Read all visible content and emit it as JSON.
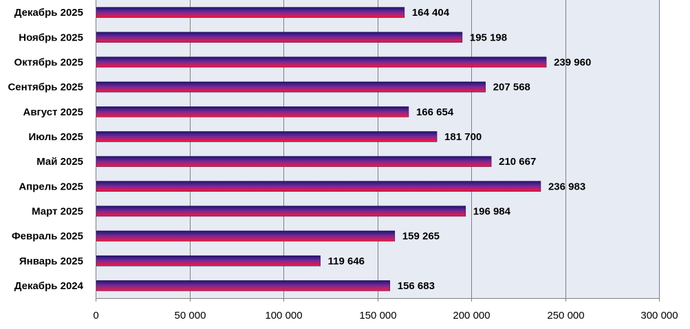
{
  "chart_data": {
    "type": "bar",
    "orientation": "horizontal",
    "title": "",
    "xlabel": "",
    "ylabel": "",
    "categories": [
      "Декабрь 2024",
      "Январь 2025",
      "Февраль 2025",
      "Март 2025",
      "Апрель 2025",
      "Май 2025",
      "Июль 2025",
      "Август 2025",
      "Сентябрь 2025",
      "Октябрь 2025",
      "Ноябрь 2025",
      "Декабрь 2025"
    ],
    "values": [
      156683,
      119646,
      159265,
      196984,
      236983,
      210667,
      181700,
      166654,
      207568,
      239960,
      195198,
      164404
    ],
    "value_labels": [
      "156 683",
      "119 646",
      "159 265",
      "196 984",
      "236 983",
      "210 667",
      "181 700",
      "166 654",
      "207 568",
      "239 960",
      "195 198",
      "164 404"
    ],
    "xlim": [
      0,
      300000
    ],
    "x_ticks": [
      0,
      50000,
      100000,
      150000,
      200000,
      250000,
      300000
    ],
    "x_tick_labels": [
      "0",
      "50 000",
      "100 000",
      "150 000",
      "200 000",
      "250 000",
      "300 000"
    ],
    "grid": true,
    "legend": "none",
    "colors": {
      "plot_background": "#e7ebf4",
      "gridline": "#7f7f7f",
      "bar_top": "#1c1573",
      "bar_mid": "#7a2a96",
      "bar_bottom": "#ff1438"
    }
  }
}
